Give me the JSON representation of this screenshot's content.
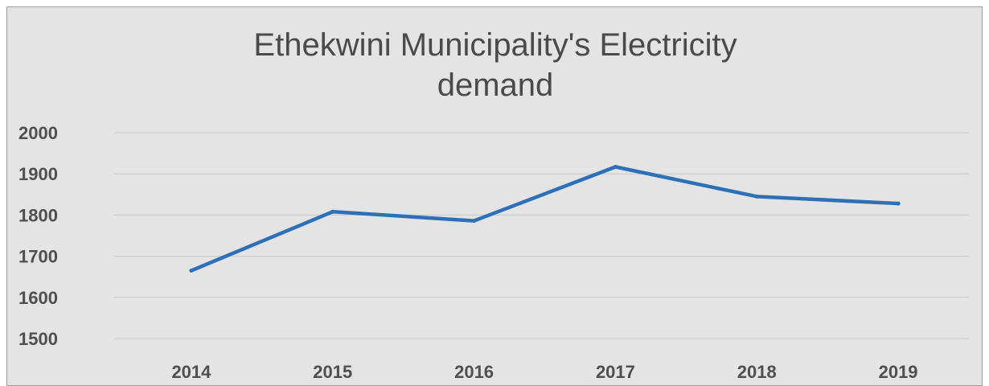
{
  "chart_data": {
    "type": "line",
    "title_lines": [
      "Ethekwini Municipality's Electricity",
      "demand"
    ],
    "categories": [
      "2014",
      "2015",
      "2016",
      "2017",
      "2018",
      "2019"
    ],
    "values": [
      1665,
      1808,
      1786,
      1917,
      1845,
      1828
    ],
    "ylim": [
      1500,
      2000
    ],
    "yticks": [
      2000,
      1900,
      1800,
      1700,
      1600,
      1500
    ],
    "grid": true,
    "line_color": "#2e70b8",
    "xlabel": "",
    "ylabel": ""
  }
}
